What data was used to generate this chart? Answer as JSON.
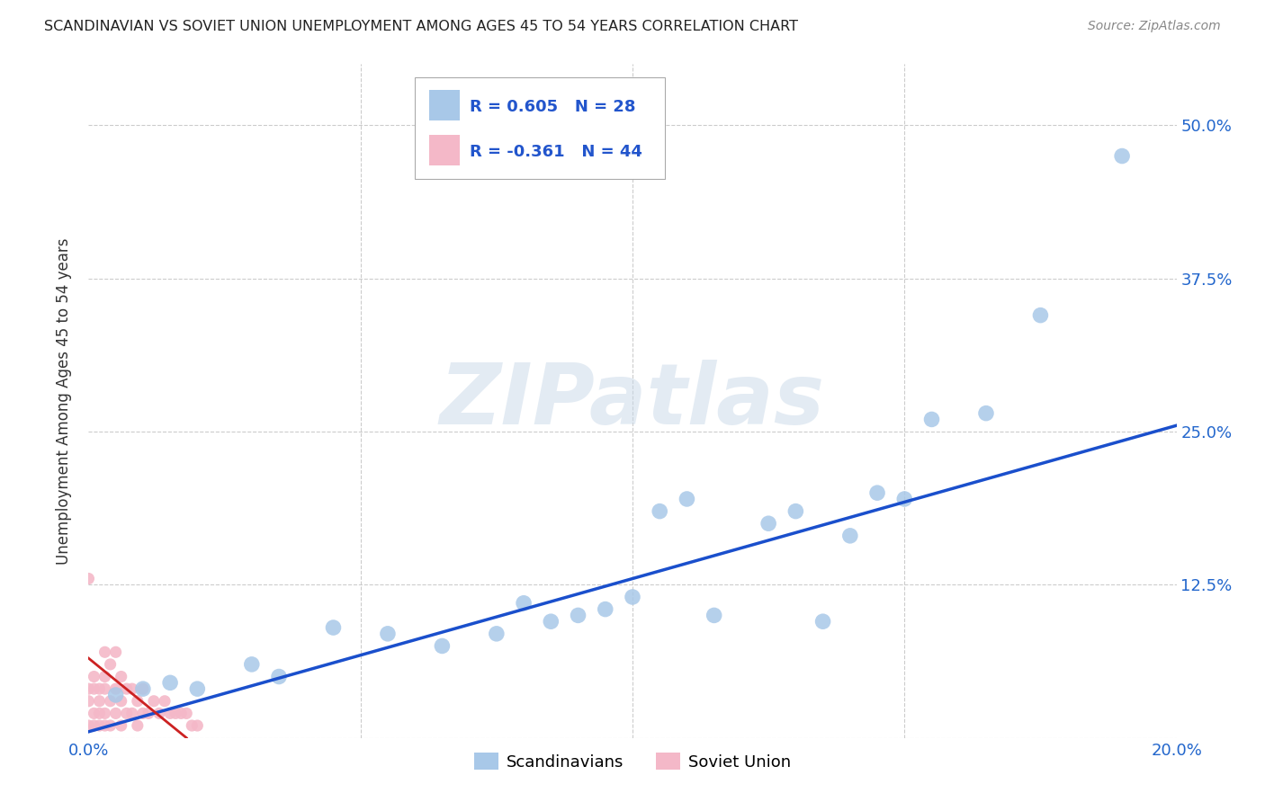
{
  "title": "SCANDINAVIAN VS SOVIET UNION UNEMPLOYMENT AMONG AGES 45 TO 54 YEARS CORRELATION CHART",
  "source": "Source: ZipAtlas.com",
  "ylabel": "Unemployment Among Ages 45 to 54 years",
  "xlim": [
    0.0,
    0.2
  ],
  "ylim": [
    0.0,
    0.55
  ],
  "xticks": [
    0.0,
    0.05,
    0.1,
    0.15,
    0.2
  ],
  "xtick_labels": [
    "0.0%",
    "",
    "",
    "",
    "20.0%"
  ],
  "yticks": [
    0.0,
    0.125,
    0.25,
    0.375,
    0.5
  ],
  "ytick_labels_right": [
    "",
    "12.5%",
    "25.0%",
    "37.5%",
    "50.0%"
  ],
  "background_color": "#ffffff",
  "grid_color": "#cccccc",
  "watermark_text": "ZIPatlas",
  "legend_r1": "R = 0.605",
  "legend_n1": "N = 28",
  "legend_r2": "R = -0.361",
  "legend_n2": "N = 44",
  "scandinavian_color": "#a8c8e8",
  "soviet_color": "#f4b8c8",
  "trend_blue": "#1a4fcc",
  "trend_red": "#cc2222",
  "legend_label1": "Scandinavians",
  "legend_label2": "Soviet Union",
  "scandinavian_x": [
    0.005,
    0.01,
    0.015,
    0.02,
    0.03,
    0.035,
    0.045,
    0.055,
    0.065,
    0.075,
    0.08,
    0.085,
    0.09,
    0.095,
    0.1,
    0.105,
    0.11,
    0.115,
    0.125,
    0.13,
    0.135,
    0.14,
    0.145,
    0.15,
    0.155,
    0.165,
    0.175,
    0.19
  ],
  "scandinavian_y": [
    0.035,
    0.04,
    0.045,
    0.04,
    0.06,
    0.05,
    0.09,
    0.085,
    0.075,
    0.085,
    0.11,
    0.095,
    0.1,
    0.105,
    0.115,
    0.185,
    0.195,
    0.1,
    0.175,
    0.185,
    0.095,
    0.165,
    0.2,
    0.195,
    0.26,
    0.265,
    0.345,
    0.475
  ],
  "soviet_x": [
    0.0,
    0.0,
    0.001,
    0.001,
    0.001,
    0.002,
    0.002,
    0.002,
    0.003,
    0.003,
    0.003,
    0.003,
    0.004,
    0.004,
    0.004,
    0.005,
    0.005,
    0.005,
    0.006,
    0.006,
    0.006,
    0.007,
    0.007,
    0.008,
    0.008,
    0.009,
    0.009,
    0.01,
    0.01,
    0.011,
    0.012,
    0.013,
    0.014,
    0.015,
    0.016,
    0.017,
    0.018,
    0.019,
    0.02,
    0.0,
    0.0,
    0.001,
    0.002,
    0.003
  ],
  "soviet_y": [
    0.13,
    0.04,
    0.01,
    0.02,
    0.05,
    0.01,
    0.02,
    0.04,
    0.01,
    0.02,
    0.04,
    0.07,
    0.01,
    0.03,
    0.06,
    0.02,
    0.04,
    0.07,
    0.01,
    0.03,
    0.05,
    0.02,
    0.04,
    0.02,
    0.04,
    0.01,
    0.03,
    0.02,
    0.04,
    0.02,
    0.03,
    0.02,
    0.03,
    0.02,
    0.02,
    0.02,
    0.02,
    0.01,
    0.01,
    0.01,
    0.03,
    0.04,
    0.03,
    0.05
  ],
  "blue_trend_x": [
    0.0,
    0.2
  ],
  "blue_trend_y": [
    0.005,
    0.255
  ],
  "red_trend_x": [
    0.0,
    0.018
  ],
  "red_trend_y": [
    0.065,
    0.0
  ]
}
